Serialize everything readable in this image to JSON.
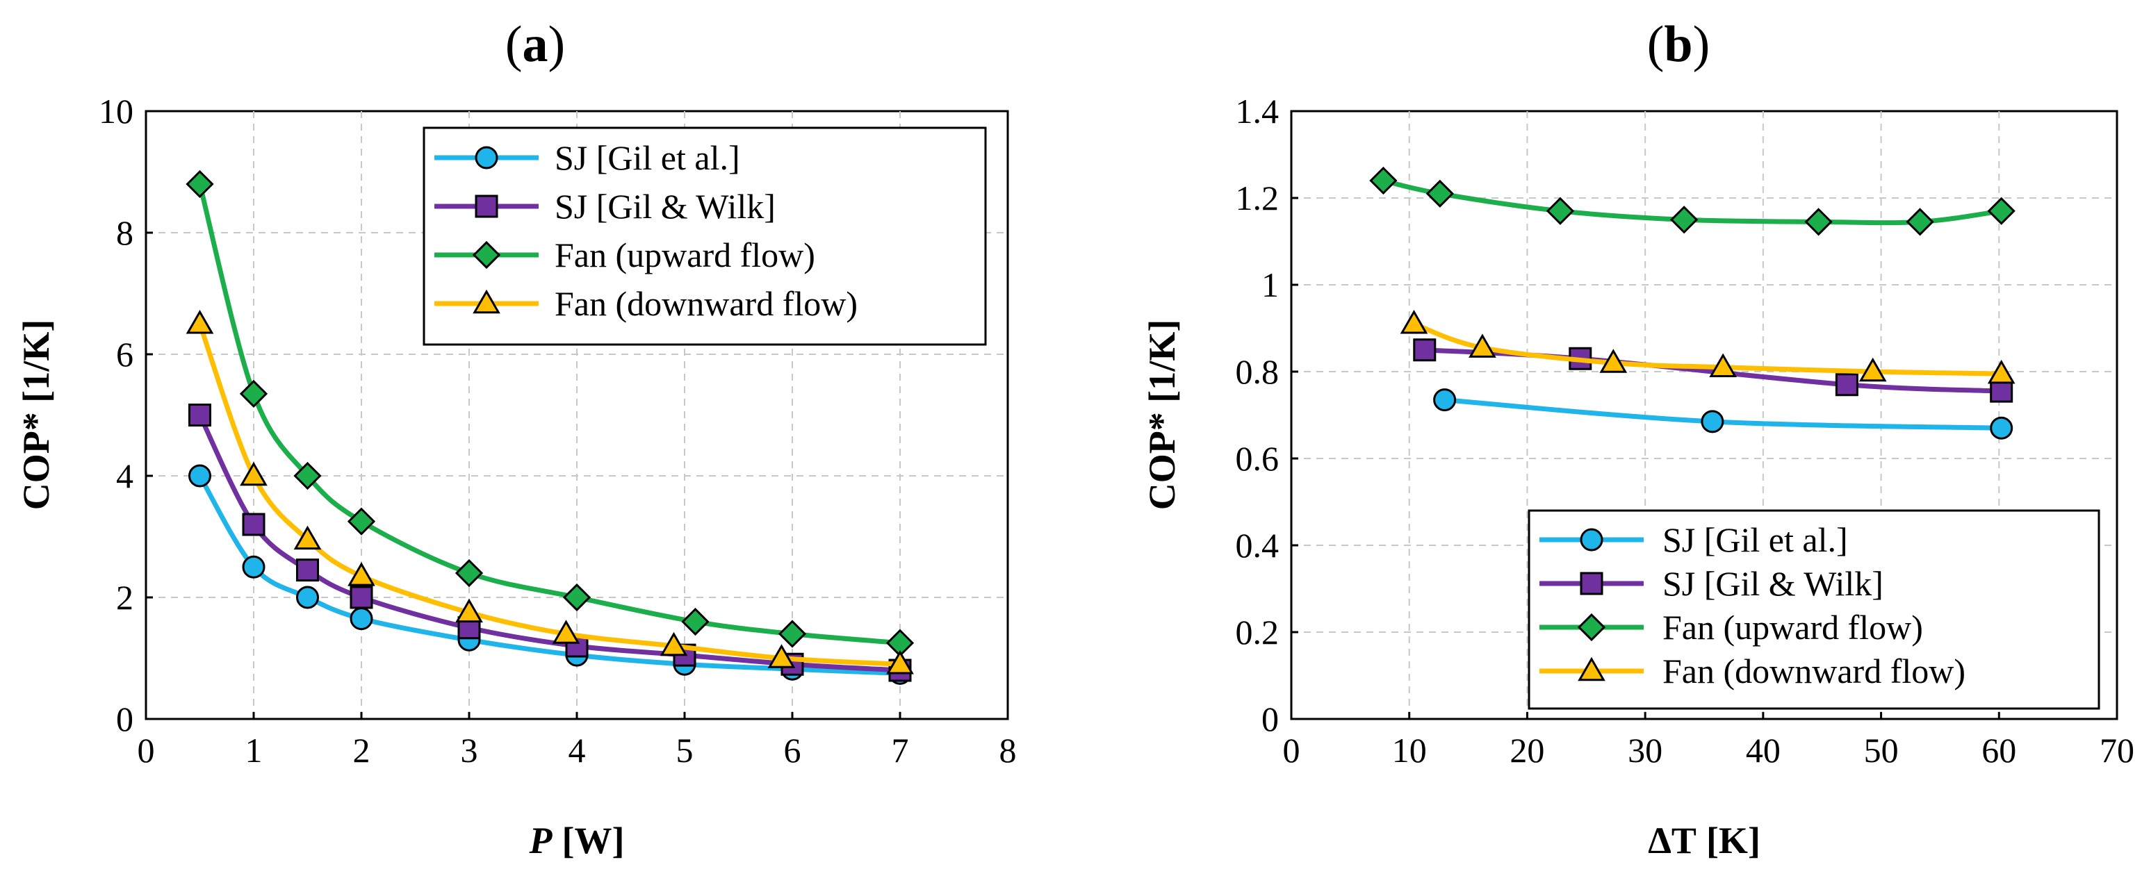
{
  "chart_data": [
    {
      "type": "line",
      "panel_label": "a",
      "xlabel": "P",
      "xlabel_unit": "[W]",
      "ylabel": "COP* [1/K]",
      "xlim": [
        0,
        8
      ],
      "ylim": [
        0,
        10
      ],
      "xticks": [
        "0",
        "1",
        "2",
        "3",
        "4",
        "5",
        "6",
        "7",
        "8"
      ],
      "yticks": [
        "0",
        "2",
        "4",
        "6",
        "8",
        "10"
      ],
      "grid": true,
      "legend_position": "top-right",
      "series": [
        {
          "name": "SJ [Gil et al.]",
          "color": "#1fb4ea",
          "marker": "circle",
          "x": [
            0.5,
            1.0,
            1.5,
            2.0,
            3.0,
            4.0,
            5.0,
            6.0,
            7.0
          ],
          "y": [
            4.0,
            2.5,
            2.0,
            1.65,
            1.3,
            1.05,
            0.9,
            0.82,
            0.75
          ]
        },
        {
          "name": "SJ [Gil & Wilk]",
          "color": "#7030a0",
          "marker": "square",
          "x": [
            0.5,
            1.0,
            1.5,
            2.0,
            3.0,
            4.0,
            5.0,
            6.0,
            7.0
          ],
          "y": [
            5.0,
            3.2,
            2.45,
            2.0,
            1.5,
            1.2,
            1.05,
            0.9,
            0.8
          ]
        },
        {
          "name": "Fan (upward flow)",
          "color": "#1bae4b",
          "marker": "diamond",
          "x": [
            0.5,
            1.0,
            1.5,
            2.0,
            3.0,
            4.0,
            5.1,
            6.0,
            7.0
          ],
          "y": [
            8.8,
            5.35,
            4.0,
            3.25,
            2.4,
            2.0,
            1.6,
            1.4,
            1.25
          ]
        },
        {
          "name": "Fan (downward flow)",
          "color": "#ffbf00",
          "marker": "triangle",
          "x": [
            0.5,
            1.0,
            1.5,
            2.0,
            3.0,
            3.9,
            4.9,
            5.9,
            7.0
          ],
          "y": [
            6.5,
            4.0,
            2.95,
            2.35,
            1.75,
            1.4,
            1.2,
            1.0,
            0.9
          ]
        }
      ]
    },
    {
      "type": "line",
      "panel_label": "b",
      "xlabel": "ΔT",
      "xlabel_unit": "[K]",
      "ylabel": "COP* [1/K]",
      "xlim": [
        0,
        70
      ],
      "ylim": [
        0,
        1.4
      ],
      "xticks": [
        "0",
        "10",
        "20",
        "30",
        "40",
        "50",
        "60",
        "70"
      ],
      "yticks": [
        "0",
        "0.2",
        "0.4",
        "0.6",
        "0.8",
        "1",
        "1.2",
        "1.4"
      ],
      "grid": true,
      "legend_position": "bottom-right",
      "series": [
        {
          "name": "SJ [Gil et al.]",
          "color": "#1fb4ea",
          "marker": "circle",
          "x": [
            13,
            35.7,
            60.2
          ],
          "y": [
            0.735,
            0.685,
            0.67
          ]
        },
        {
          "name": "SJ [Gil & Wilk]",
          "color": "#7030a0",
          "marker": "square",
          "x": [
            11.3,
            24.5,
            47.1,
            60.2
          ],
          "y": [
            0.85,
            0.83,
            0.77,
            0.755
          ]
        },
        {
          "name": "Fan (upward flow)",
          "color": "#1bae4b",
          "marker": "diamond",
          "x": [
            7.8,
            12.6,
            22.8,
            33.3,
            44.7,
            53.3,
            60.2
          ],
          "y": [
            1.24,
            1.21,
            1.17,
            1.15,
            1.145,
            1.145,
            1.17
          ]
        },
        {
          "name": "Fan (downward flow)",
          "color": "#ffbf00",
          "marker": "triangle",
          "x": [
            10.4,
            16.2,
            27.3,
            36.6,
            49.3,
            60.2
          ],
          "y": [
            0.91,
            0.855,
            0.82,
            0.81,
            0.8,
            0.795
          ]
        }
      ]
    }
  ]
}
